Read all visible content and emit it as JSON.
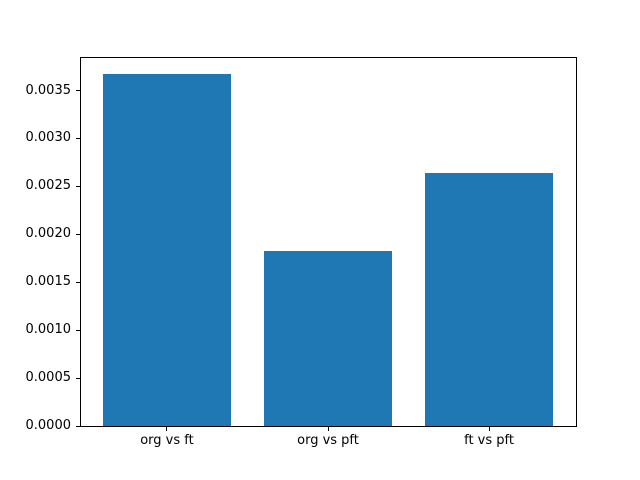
{
  "figure": {
    "background_color": "#ffffff",
    "spine_color": "#000000",
    "tick_color": "#000000",
    "text_color": "#000000"
  },
  "chart_data": {
    "type": "bar",
    "title": "",
    "xlabel": "",
    "ylabel": "",
    "categories": [
      "org vs ft",
      "org vs pft",
      "ft vs pft"
    ],
    "values": [
      0.00367,
      0.00183,
      0.00264
    ],
    "bar_color": "#1f77b4",
    "bar_width_fraction": 0.8,
    "ylim": [
      0,
      0.00385
    ],
    "yticks": [
      0.0,
      0.0005,
      0.001,
      0.0015,
      0.002,
      0.0025,
      0.003,
      0.0035
    ],
    "ytick_labels": [
      "0.0000",
      "0.0005",
      "0.0010",
      "0.0015",
      "0.0020",
      "0.0025",
      "0.0030",
      "0.0035"
    ],
    "grid": false,
    "legend": null
  }
}
